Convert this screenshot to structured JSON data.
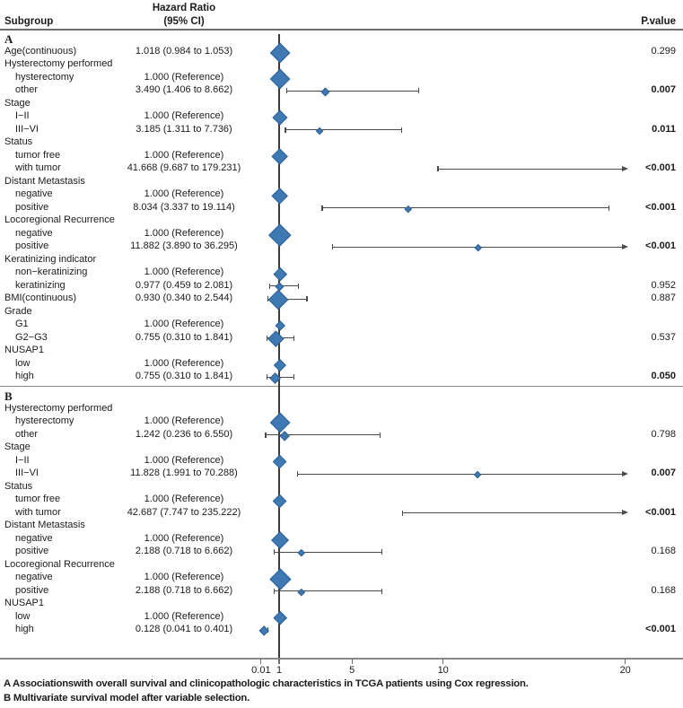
{
  "header": {
    "subgroup": "Subgroup",
    "hazard_ratio_line1": "Hazard Ratio",
    "hazard_ratio_line2": "(95% CI)",
    "p_value": "P.value"
  },
  "colors": {
    "diamond_fill": "#3E79B4",
    "diamond_border": "#2E6094",
    "whisker": "#4a4a4a",
    "rule": "#6e6e6e",
    "text": "#1b1b1b"
  },
  "footer": {
    "line_a": "A Associationswith overall survival and clinicopathologic characteristics in TCGA patients using Cox regression.",
    "line_b": "B Multivariate survival model after variable selection."
  },
  "chart_data": {
    "type": "forest",
    "x_axis": {
      "scale": "linear",
      "reference_value": 1,
      "tick_values": [
        0.01,
        1,
        5,
        10,
        20
      ],
      "tick_labels": [
        "0.01",
        "1",
        "5",
        "10",
        "20"
      ],
      "grid": false
    },
    "sections": [
      {
        "id": "A",
        "rows": [
          {
            "kind": "section",
            "label": "A"
          },
          {
            "kind": "data",
            "label": "Age(continuous)",
            "indent": 0,
            "hr": "1.018 (0.984 to  1.053)",
            "est": 1.018,
            "lo": 0.984,
            "hi": 1.053,
            "size": 20,
            "p": "0.299",
            "sig": false
          },
          {
            "kind": "group",
            "label": "Hysterectomy performed"
          },
          {
            "kind": "data",
            "label": "hysterectomy",
            "indent": 1,
            "hr": "1.000 (Reference)",
            "est": 1,
            "size": 20,
            "p": ""
          },
          {
            "kind": "data",
            "label": "other",
            "indent": 1,
            "hr": "3.490 (1.406 to  8.662)",
            "est": 3.49,
            "lo": 1.406,
            "hi": 8.662,
            "size": 7,
            "p": "0.007",
            "sig": true
          },
          {
            "kind": "group",
            "label": "Stage"
          },
          {
            "kind": "data",
            "label": "I−II",
            "indent": 1,
            "hr": "1.000 (Reference)",
            "est": 1,
            "size": 14,
            "p": ""
          },
          {
            "kind": "data",
            "label": "III−VI",
            "indent": 1,
            "hr": "3.185 (1.311 to  7.736)",
            "est": 3.185,
            "lo": 1.311,
            "hi": 7.736,
            "size": 6,
            "p": "0.011",
            "sig": true
          },
          {
            "kind": "group",
            "label": "Status"
          },
          {
            "kind": "data",
            "label": "tumor free",
            "indent": 1,
            "hr": "1.000 (Reference)",
            "est": 1,
            "size": 16,
            "p": ""
          },
          {
            "kind": "data",
            "label": "with tumor",
            "indent": 1,
            "hr": "41.668 (9.687 to 179.231)",
            "est": 41.668,
            "lo": 9.687,
            "hi": 179.231,
            "size": 0,
            "p": "<0.001",
            "sig": true
          },
          {
            "kind": "group",
            "label": "Distant Metastasis"
          },
          {
            "kind": "data",
            "label": "negative",
            "indent": 1,
            "hr": "1.000 (Reference)",
            "est": 1,
            "size": 16,
            "p": ""
          },
          {
            "kind": "data",
            "label": "positive",
            "indent": 1,
            "hr": "8.034 (3.337 to 19.114)",
            "est": 8.034,
            "lo": 3.337,
            "hi": 19.114,
            "size": 5,
            "p": "<0.001",
            "sig": true
          },
          {
            "kind": "group",
            "label": "Locoregional Recurrence"
          },
          {
            "kind": "data",
            "label": "negative",
            "indent": 1,
            "hr": "1.000 (Reference)",
            "est": 1,
            "size": 22,
            "p": ""
          },
          {
            "kind": "data",
            "label": "positive",
            "indent": 1,
            "hr": "11.882 (3.890 to 36.295)",
            "est": 11.882,
            "lo": 3.89,
            "hi": 36.295,
            "size": 5,
            "p": "<0.001",
            "sig": true
          },
          {
            "kind": "group",
            "label": "Keratinizing indicator"
          },
          {
            "kind": "data",
            "label": "non−keratinizing",
            "indent": 1,
            "hr": "1.000 (Reference)",
            "est": 1,
            "size": 12,
            "p": ""
          },
          {
            "kind": "data",
            "label": "keratinizing",
            "indent": 1,
            "hr": "0.977 (0.459 to  2.081)",
            "est": 0.977,
            "lo": 0.459,
            "hi": 2.081,
            "size": 7,
            "p": "0.952",
            "sig": false
          },
          {
            "kind": "data",
            "label": "BMI(continuous)",
            "indent": 0,
            "hr": "0.930 (0.340 to  2.544)",
            "est": 0.93,
            "lo": 0.34,
            "hi": 2.544,
            "size": 20,
            "p": "0.887",
            "sig": false
          },
          {
            "kind": "group",
            "label": "Grade"
          },
          {
            "kind": "data",
            "label": "G1",
            "indent": 1,
            "hr": "1.000 (Reference)",
            "est": 1,
            "size": 9,
            "p": ""
          },
          {
            "kind": "data",
            "label": "G2−G3",
            "indent": 1,
            "hr": "0.755 (0.310 to  1.841)",
            "est": 0.755,
            "lo": 0.31,
            "hi": 1.841,
            "size": 15,
            "p": "0.537",
            "sig": false
          },
          {
            "kind": "group",
            "label": "NUSAP1"
          },
          {
            "kind": "data",
            "label": "low",
            "indent": 1,
            "hr": "1.000 (Reference)",
            "est": 1,
            "size": 11,
            "p": ""
          },
          {
            "kind": "data",
            "label": "high",
            "indent": 1,
            "hr": "0.755 (0.310 to  1.841)",
            "est": 0.755,
            "lo": 0.31,
            "hi": 1.841,
            "size": 10,
            "p": "0.050",
            "sig": true
          }
        ]
      },
      {
        "id": "B",
        "rows": [
          {
            "kind": "section",
            "label": "B"
          },
          {
            "kind": "group",
            "label": "Hysterectomy performed"
          },
          {
            "kind": "data",
            "label": "hysterectomy",
            "indent": 1,
            "hr": "1.000 (Reference)",
            "est": 1,
            "size": 20,
            "p": ""
          },
          {
            "kind": "data",
            "label": "other",
            "indent": 1,
            "hr": "1.242 (0.236 to  6.550)",
            "est": 1.242,
            "lo": 0.236,
            "hi": 6.55,
            "size": 9,
            "p": "0.798",
            "sig": false
          },
          {
            "kind": "group",
            "label": "Stage"
          },
          {
            "kind": "data",
            "label": "I−II",
            "indent": 1,
            "hr": "1.000 (Reference)",
            "est": 1,
            "size": 13,
            "p": ""
          },
          {
            "kind": "data",
            "label": "III−VI",
            "indent": 1,
            "hr": "11.828 (1.991 to 70.288)",
            "est": 11.828,
            "lo": 1.991,
            "hi": 70.288,
            "size": 6,
            "p": "0.007",
            "sig": true
          },
          {
            "kind": "group",
            "label": "Status"
          },
          {
            "kind": "data",
            "label": "tumor free",
            "indent": 1,
            "hr": "1.000 (Reference)",
            "est": 1,
            "size": 13,
            "p": ""
          },
          {
            "kind": "data",
            "label": "with tumor",
            "indent": 1,
            "hr": "42.687 (7.747 to 235.222)",
            "est": 42.687,
            "lo": 7.747,
            "hi": 235.222,
            "size": 0,
            "p": "<0.001",
            "sig": true
          },
          {
            "kind": "group",
            "label": "Distant Metastasis"
          },
          {
            "kind": "data",
            "label": "negative",
            "indent": 1,
            "hr": "1.000 (Reference)",
            "est": 1,
            "size": 17,
            "p": ""
          },
          {
            "kind": "data",
            "label": "positive",
            "indent": 1,
            "hr": "2.188 (0.718 to  6.662)",
            "est": 2.188,
            "lo": 0.718,
            "hi": 6.662,
            "size": 5,
            "p": "0.168",
            "sig": false
          },
          {
            "kind": "group",
            "label": "Locoregional Recurrence"
          },
          {
            "kind": "data",
            "label": "negative",
            "indent": 1,
            "hr": "1.000 (Reference)",
            "est": 1,
            "size": 21,
            "p": ""
          },
          {
            "kind": "data",
            "label": "positive",
            "indent": 1,
            "hr": "2.188 (0.718 to  6.662)",
            "est": 2.188,
            "lo": 0.718,
            "hi": 6.662,
            "size": 5,
            "p": "0.168",
            "sig": false
          },
          {
            "kind": "group",
            "label": "NUSAP1"
          },
          {
            "kind": "data",
            "label": "low",
            "indent": 1,
            "hr": "1.000 (Reference)",
            "est": 1,
            "size": 12,
            "p": ""
          },
          {
            "kind": "data",
            "label": "high",
            "indent": 1,
            "hr": "0.128 (0.041 to  0.401)",
            "est": 0.128,
            "lo": 0.041,
            "hi": 0.401,
            "size": 9,
            "p": "<0.001",
            "sig": true
          }
        ]
      }
    ]
  }
}
